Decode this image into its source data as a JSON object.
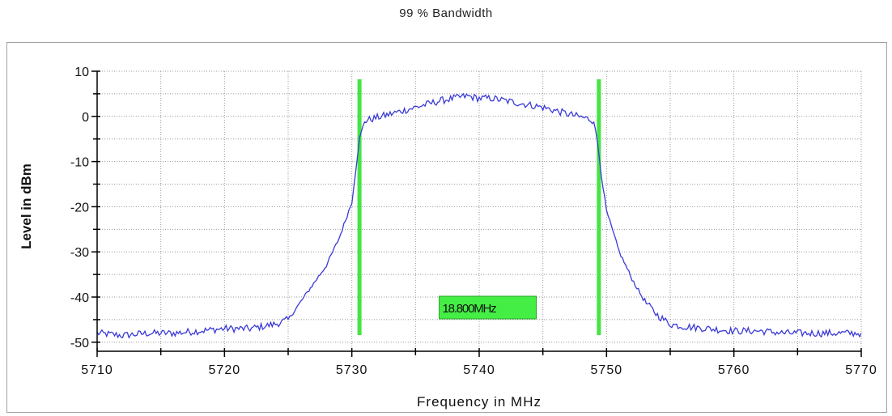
{
  "title": "99 % Bandwidth",
  "colors": {
    "trace": "#3a3ad8",
    "marker": "#44e444",
    "marker_box": "#44ee44",
    "grid": "#9a9a9a",
    "frame": "#a0a0a0"
  },
  "chart_data": {
    "type": "line",
    "title": "99 % Bandwidth",
    "xlabel": "Frequency in MHz",
    "ylabel": "Level in dBm",
    "xlim": [
      5710,
      5770
    ],
    "ylim": [
      -52,
      10
    ],
    "x_ticks": [
      5710,
      5720,
      5730,
      5740,
      5750,
      5760,
      5770
    ],
    "y_ticks": [
      10,
      0,
      -10,
      -20,
      -30,
      -40,
      -50
    ],
    "grid": true,
    "series": [
      {
        "x": [
          5710,
          5712,
          5714,
          5716,
          5718,
          5720,
          5722,
          5724,
          5725,
          5726,
          5727,
          5728,
          5729,
          5730,
          5730.3,
          5730.6,
          5731,
          5733,
          5735,
          5737,
          5739,
          5740,
          5741,
          5743,
          5745,
          5747,
          5748.5,
          5749,
          5749.3,
          5749.6,
          5750,
          5751,
          5752,
          5753,
          5754,
          5755,
          5756,
          5758,
          5760,
          5762,
          5764,
          5766,
          5768,
          5770
        ],
        "y": [
          -48,
          -48.5,
          -48,
          -48,
          -47.5,
          -47,
          -47,
          -46,
          -45,
          -41,
          -37,
          -33,
          -27,
          -19,
          -12,
          -5,
          -1,
          0.5,
          2,
          3.5,
          4.5,
          4,
          4,
          3,
          2,
          0.5,
          -0.5,
          -1,
          -6,
          -13,
          -21,
          -30,
          -36,
          -41,
          -44,
          -46,
          -46.5,
          -47,
          -47.5,
          -47.5,
          -48,
          -48,
          -48,
          -48
        ]
      }
    ],
    "markers": [
      {
        "x": 5730.6,
        "label": ""
      },
      {
        "x": 5749.4,
        "label": ""
      }
    ],
    "annotation": {
      "text": "18.800MHz",
      "x": 5738
    }
  }
}
